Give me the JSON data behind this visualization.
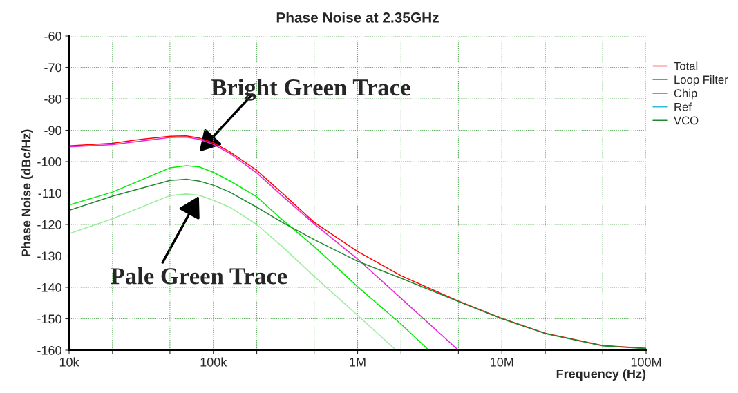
{
  "chart_data": {
    "type": "line",
    "title": "Phase Noise at 2.35GHz",
    "xlabel": "Frequency (Hz)",
    "ylabel": "Phase Noise (dBc/Hz)",
    "log": "x",
    "grid": true,
    "legend": "top right",
    "marker": "none",
    "line_style": "solid",
    "xlim": [
      10000,
      100000000
    ],
    "ylim": [
      -160,
      -60
    ],
    "xticks": [
      {
        "value": 10000,
        "label": "10k"
      },
      {
        "value": 20000,
        "label": null
      },
      {
        "value": 50000,
        "label": null
      },
      {
        "value": 100000,
        "label": "100k"
      },
      {
        "value": 200000,
        "label": null
      },
      {
        "value": 500000,
        "label": null
      },
      {
        "value": 1000000,
        "label": "1M"
      },
      {
        "value": 2000000,
        "label": null
      },
      {
        "value": 5000000,
        "label": null
      },
      {
        "value": 10000000,
        "label": "10M"
      },
      {
        "value": 20000000,
        "label": null
      },
      {
        "value": 50000000,
        "label": null
      },
      {
        "value": 100000000,
        "label": "100M"
      }
    ],
    "yticks": [
      -60,
      -70,
      -80,
      -90,
      -100,
      -110,
      -120,
      -130,
      -140,
      -150,
      -160
    ],
    "series": [
      {
        "name": "Total",
        "color": "#ff0000",
        "x": [
          10000,
          20000,
          30000,
          50000,
          65000,
          80000,
          100000,
          130000,
          200000,
          300000,
          500000,
          1000000,
          2000000,
          5000000,
          10000000,
          20000000,
          50000000,
          100000000
        ],
        "values": [
          -95,
          -94.2,
          -93,
          -91.9,
          -91.8,
          -92.5,
          -94,
          -96.9,
          -102.8,
          -110,
          -119.3,
          -128.6,
          -136.3,
          -144.4,
          -149.9,
          -154.6,
          -158.5,
          -159.4
        ]
      },
      {
        "name": "Loop Filter",
        "color": "#00ee00",
        "x": [
          10000,
          20000,
          50000,
          65000,
          80000,
          100000,
          130000,
          200000,
          300000,
          500000,
          1000000,
          2000000,
          3120000
        ],
        "values": [
          -113.8,
          -109.7,
          -102,
          -101.3,
          -101.7,
          -103.4,
          -106.1,
          -111.2,
          -118.5,
          -127,
          -139.8,
          -151.7,
          -160
        ]
      },
      {
        "name": "Chip",
        "color": "#ee22dd",
        "x": [
          10000,
          20000,
          50000,
          65000,
          80000,
          100000,
          130000,
          200000,
          300000,
          500000,
          1000000,
          2000000,
          5000000
        ],
        "values": [
          -95.3,
          -94.6,
          -92.3,
          -92.2,
          -92.9,
          -94.5,
          -97.4,
          -103.6,
          -110.9,
          -119.8,
          -131,
          -143.5,
          -160
        ]
      },
      {
        "name": "Ref",
        "color": "#33bbdd"
      },
      {
        "name": "VCO",
        "color": "#228833",
        "x": [
          10000,
          20000,
          50000,
          65000,
          80000,
          100000,
          130000,
          200000,
          300000,
          500000,
          1000000,
          2000000,
          5000000,
          10000000,
          20000000,
          50000000,
          100000000
        ],
        "values": [
          -115.5,
          -111,
          -106,
          -105.6,
          -106.2,
          -107.5,
          -109.7,
          -114.5,
          -119.3,
          -124.8,
          -131.7,
          -137.1,
          -144.5,
          -150,
          -154.7,
          -158.6,
          -159.5
        ]
      },
      {
        "color": "#99ee99",
        "x": [
          10000,
          20000,
          50000,
          65000,
          80000,
          100000,
          130000,
          200000,
          300000,
          500000,
          1000000,
          1850000
        ],
        "values": [
          -122.9,
          -118.2,
          -110.8,
          -110.3,
          -110.7,
          -112.3,
          -114.5,
          -120,
          -127,
          -136.5,
          -148.9,
          -160
        ]
      }
    ],
    "annotations": [
      {
        "text": "Bright Green Trace",
        "x": 65000,
        "y": -101.3
      },
      {
        "text": "Pale Green Trace",
        "x": 80000,
        "y": -110.7
      }
    ]
  }
}
